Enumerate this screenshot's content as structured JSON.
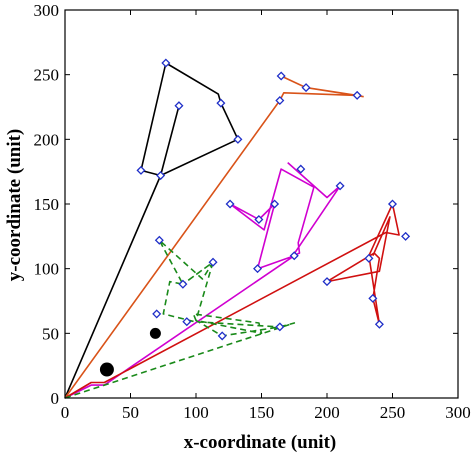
{
  "chart_data": {
    "type": "scatter",
    "title": "",
    "xlabel": "x-coordinate (unit)",
    "ylabel": "y-coordinate (unit)",
    "xlim": [
      0,
      300
    ],
    "ylim": [
      0,
      300
    ],
    "xticks": [
      0,
      50,
      100,
      150,
      200,
      250,
      300
    ],
    "yticks": [
      0,
      50,
      100,
      150,
      200,
      250,
      300
    ],
    "grid": false,
    "legend": "none",
    "series": [
      {
        "color": "#000000",
        "style": "solid",
        "points": [
          [
            0,
            0
          ],
          [
            73,
            172
          ],
          [
            58,
            176
          ],
          [
            77,
            259
          ],
          [
            117,
            235
          ],
          [
            119,
            228
          ],
          [
            132,
            200
          ],
          [
            73,
            172
          ],
          [
            87,
            226
          ]
        ],
        "markers": [
          [
            58,
            176
          ],
          [
            73,
            172
          ],
          [
            77,
            259
          ],
          [
            87,
            226
          ],
          [
            119,
            228
          ],
          [
            132,
            200
          ]
        ]
      },
      {
        "color": "#D95319",
        "style": "solid",
        "points": [
          [
            0,
            0
          ],
          [
            164,
            230
          ],
          [
            167,
            236
          ],
          [
            223,
            234
          ],
          [
            184,
            240
          ],
          [
            165,
            249
          ],
          [
            184,
            240
          ],
          [
            228,
            233
          ]
        ],
        "markers": [
          [
            164,
            230
          ],
          [
            165,
            249
          ],
          [
            184,
            240
          ],
          [
            223,
            234
          ]
        ]
      },
      {
        "color": "#D000D0",
        "style": "solid",
        "points": [
          [
            0,
            0
          ],
          [
            20,
            10
          ],
          [
            30,
            10
          ],
          [
            175,
            110
          ],
          [
            147,
            100
          ],
          [
            160,
            150
          ],
          [
            148,
            138
          ],
          [
            126,
            150
          ],
          [
            152,
            130
          ],
          [
            165,
            177
          ],
          [
            190,
            163
          ],
          [
            178,
            120
          ],
          [
            179,
            112
          ],
          [
            174,
            110
          ],
          [
            184,
            125
          ],
          [
            210,
            164
          ],
          [
            200,
            155
          ],
          [
            170,
            182
          ]
        ],
        "markers": [
          [
            126,
            150
          ],
          [
            147,
            100
          ],
          [
            148,
            138
          ],
          [
            160,
            150
          ],
          [
            175,
            110
          ],
          [
            180,
            177
          ],
          [
            210,
            164
          ]
        ]
      },
      {
        "color": "#D01010",
        "style": "solid",
        "points": [
          [
            0,
            0
          ],
          [
            20,
            12
          ],
          [
            30,
            12
          ],
          [
            245,
            128
          ],
          [
            255,
            126
          ],
          [
            250,
            150
          ],
          [
            232,
            110
          ],
          [
            240,
            57
          ],
          [
            235,
            77
          ],
          [
            240,
            108
          ],
          [
            236,
            112
          ],
          [
            200,
            90
          ],
          [
            240,
            98
          ],
          [
            248,
            140
          ],
          [
            235,
            110
          ]
        ],
        "markers": [
          [
            200,
            90
          ],
          [
            232,
            108
          ],
          [
            235,
            77
          ],
          [
            240,
            57
          ],
          [
            250,
            150
          ],
          [
            260,
            125
          ]
        ]
      },
      {
        "color": "#1A8A1A",
        "style": "dashed",
        "points": [
          [
            0,
            0
          ],
          [
            175,
            58
          ],
          [
            164,
            55
          ],
          [
            120,
            48
          ],
          [
            100,
            60
          ],
          [
            150,
            50
          ],
          [
            148,
            58
          ],
          [
            98,
            65
          ],
          [
            100,
            60
          ],
          [
            113,
            105
          ],
          [
            90,
            88
          ],
          [
            113,
            105
          ],
          [
            105,
            92
          ],
          [
            72,
            122
          ],
          [
            90,
            88
          ],
          [
            80,
            90
          ],
          [
            75,
            65
          ],
          [
            99,
            59
          ],
          [
            164,
            55
          ]
        ],
        "markers": [
          [
            70,
            65
          ],
          [
            72,
            122
          ],
          [
            90,
            88
          ],
          [
            93,
            59
          ],
          [
            113,
            105
          ],
          [
            120,
            48
          ],
          [
            164,
            55
          ]
        ]
      }
    ],
    "large_points": [
      {
        "x": 32,
        "y": 22,
        "size": "large"
      },
      {
        "x": 69,
        "y": 50,
        "size": "medium"
      }
    ]
  }
}
